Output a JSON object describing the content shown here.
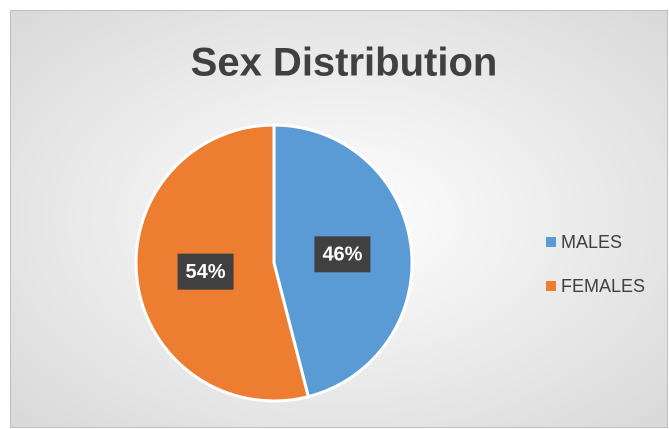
{
  "chart_data": {
    "type": "pie",
    "title": "Sex Distribution",
    "categories": [
      "MALES",
      "FEMALES"
    ],
    "values": [
      46,
      54
    ],
    "value_labels": [
      "46%",
      "54%"
    ],
    "colors": [
      "#5b9bd5",
      "#ed7d31"
    ],
    "legend": "right"
  }
}
